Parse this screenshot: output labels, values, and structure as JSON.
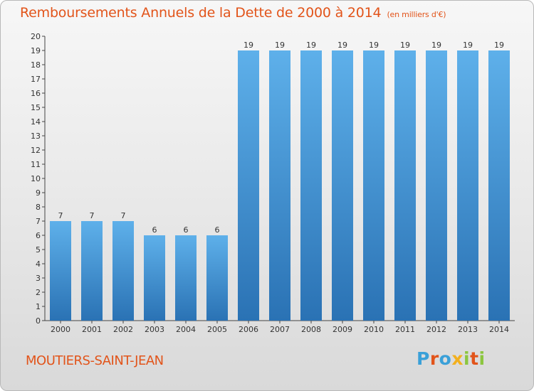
{
  "header": {
    "title": "Remboursements Annuels de la Dette de 2000 à 2014",
    "unit": "(en milliers d'€)"
  },
  "footer": {
    "place": "MOUTIERS-SAINT-JEAN",
    "brand": "Proxiti"
  },
  "colors": {
    "title": "#e2541a",
    "bar_light": "#5eb0ea",
    "bar_dark": "#2a72b4"
  },
  "chart_data": {
    "type": "bar",
    "title": "Remboursements Annuels de la Dette de 2000 à 2014",
    "subtitle": "(en milliers d'€)",
    "xlabel": "",
    "ylabel": "",
    "categories": [
      "2000",
      "2001",
      "2002",
      "2003",
      "2004",
      "2005",
      "2006",
      "2007",
      "2008",
      "2009",
      "2010",
      "2011",
      "2012",
      "2013",
      "2014"
    ],
    "values": [
      7,
      7,
      7,
      6,
      6,
      6,
      19,
      19,
      19,
      19,
      19,
      19,
      19,
      19,
      19
    ],
    "ylim": [
      0,
      20
    ],
    "yticks": [
      0,
      1,
      2,
      3,
      4,
      5,
      6,
      7,
      8,
      9,
      10,
      11,
      12,
      13,
      14,
      15,
      16,
      17,
      18,
      19,
      20
    ],
    "grid": false,
    "data_labels": true
  }
}
